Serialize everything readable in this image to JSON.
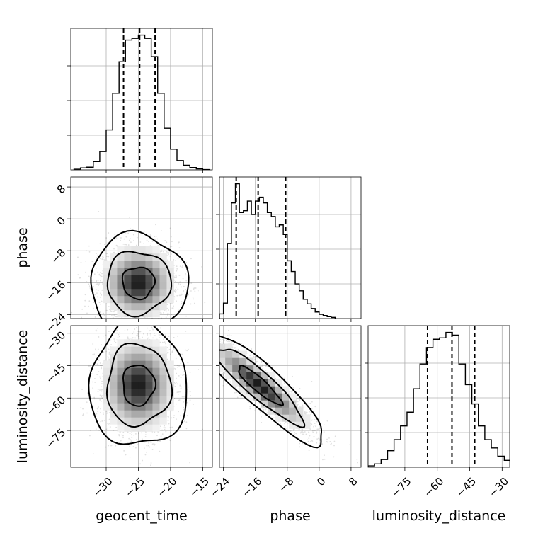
{
  "chart_data": {
    "type": "corner",
    "parameters": [
      "geocent_time",
      "phase",
      "luminosity_distance"
    ],
    "axis_labels": {
      "geocent_time": "geocent_time",
      "phase": "phase",
      "luminosity_distance": "luminosity_distance"
    },
    "ranges": {
      "geocent_time": [
        -35.5,
        -13.5
      ],
      "phase": [
        -25,
        10.5
      ],
      "luminosity_distance": [
        -92,
        -26.5
      ]
    },
    "ticks": {
      "geocent_time": [
        -30,
        -25,
        -20,
        -15
      ],
      "phase": [
        -24,
        -16,
        -8,
        0,
        8
      ],
      "luminosity_distance": [
        -75,
        -60,
        -45,
        -30
      ]
    },
    "tick_labels": {
      "geocent_time": [
        "−30",
        "−25",
        "−20",
        "−15"
      ],
      "phase": [
        "−24",
        "−16",
        "−8",
        "0",
        "8"
      ],
      "luminosity_distance": [
        "−75",
        "−60",
        "−45",
        "−30"
      ]
    },
    "quantiles": {
      "geocent_time": [
        -27.3,
        -24.8,
        -22.4
      ],
      "phase": [
        -20.8,
        -15.3,
        -8.4
      ],
      "luminosity_distance": [
        -64.5,
        -53.2,
        -42.7
      ]
    },
    "histograms": {
      "geocent_time": {
        "bin_edges": [
          -35,
          -34,
          -33,
          -32,
          -31,
          -30,
          -29,
          -28,
          -27,
          -26,
          -25,
          -24,
          -23,
          -22,
          -21,
          -20,
          -19,
          -18,
          -17,
          -16,
          -15,
          -14
        ],
        "counts": [
          2,
          6,
          8,
          25,
          55,
          120,
          230,
          325,
          390,
          395,
          405,
          395,
          340,
          230,
          125,
          62,
          28,
          14,
          7,
          3,
          1
        ]
      },
      "phase": {
        "bin_edges": [
          -25,
          -24,
          -23,
          -22,
          -21,
          -20,
          -19,
          -18,
          -17,
          -16,
          -15,
          -14,
          -13,
          -12,
          -11,
          -10,
          -9,
          -8,
          -7,
          -6,
          -5,
          -4,
          -3,
          -2,
          -1,
          0,
          1,
          2,
          3,
          4
        ],
        "counts": [
          12,
          40,
          195,
          300,
          350,
          275,
          280,
          305,
          270,
          305,
          315,
          300,
          275,
          265,
          238,
          243,
          218,
          150,
          122,
          90,
          72,
          50,
          38,
          26,
          17,
          11,
          8,
          5,
          3
        ]
      },
      "luminosity_distance": {
        "bin_edges": [
          -92,
          -89,
          -86,
          -83,
          -80,
          -77,
          -74,
          -71,
          -68,
          -65,
          -62,
          -59,
          -56,
          -53,
          -50,
          -47,
          -44,
          -41,
          -38,
          -35,
          -32,
          -29,
          -26
        ],
        "counts": [
          5,
          12,
          28,
          60,
          100,
          150,
          200,
          285,
          375,
          435,
          465,
          470,
          490,
          480,
          375,
          300,
          230,
          150,
          100,
          70,
          40,
          25
        ]
      }
    },
    "pairs": [
      {
        "x": "geocent_time",
        "y": "phase",
        "peak": [
          -25.0,
          -16.0
        ],
        "sd": [
          2.5,
          4.0
        ],
        "rho": 0.0,
        "levels": [
          0.39,
          0.86,
          0.99
        ]
      },
      {
        "x": "geocent_time",
        "y": "luminosity_distance",
        "peak": [
          -25.0,
          -54.0
        ],
        "sd": [
          2.5,
          9.5
        ],
        "rho": 0.0,
        "levels": [
          0.39,
          0.86,
          0.99
        ]
      },
      {
        "x": "phase",
        "y": "luminosity_distance",
        "peak": [
          -15.0,
          -54.0
        ],
        "sd": [
          5.5,
          9.0
        ],
        "rho": -0.9,
        "levels": [
          0.39,
          0.86,
          0.99
        ]
      }
    ]
  }
}
